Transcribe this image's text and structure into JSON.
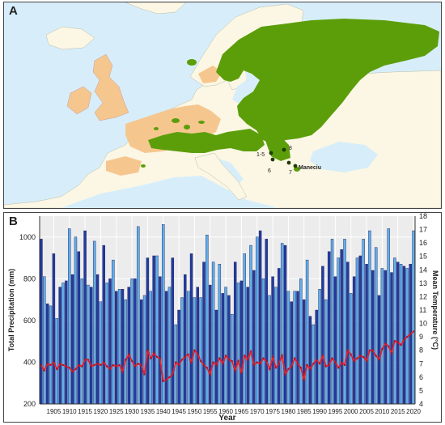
{
  "panel_a": {
    "letter": "A",
    "site_labels": [
      "1-5",
      "6",
      "7",
      "8",
      "Maneciu"
    ],
    "colors": {
      "sea": "#d7eefa",
      "land": "#fbf7e4",
      "range": "#5c9e0a",
      "highlight": "#f5c78f",
      "site": "#1e3d08"
    }
  },
  "panel_b": {
    "letter": "B"
  },
  "chart_data": {
    "type": "bar",
    "title": "",
    "xlabel": "Year",
    "ylabel": "Total Precipitation (mm)",
    "y2label": "Mean Temperature (°C)",
    "ylim": [
      200,
      1100
    ],
    "y2lim": [
      4,
      18
    ],
    "yticks": [
      200,
      400,
      600,
      800,
      1000
    ],
    "y2ticks": [
      4,
      5,
      6,
      7,
      8,
      9,
      10,
      11,
      12,
      13,
      14,
      15,
      16,
      17,
      18
    ],
    "xticks": [
      1905,
      1910,
      1915,
      1920,
      1925,
      1930,
      1935,
      1940,
      1945,
      1950,
      1955,
      1960,
      1965,
      1970,
      1975,
      1980,
      1985,
      1990,
      1995,
      2000,
      2005,
      2010,
      2015,
      2020
    ],
    "grid": true,
    "years": [
      1901,
      1902,
      1903,
      1904,
      1905,
      1906,
      1907,
      1908,
      1909,
      1910,
      1911,
      1912,
      1913,
      1914,
      1915,
      1916,
      1917,
      1918,
      1919,
      1920,
      1921,
      1922,
      1923,
      1924,
      1925,
      1926,
      1927,
      1928,
      1929,
      1930,
      1931,
      1932,
      1933,
      1934,
      1935,
      1936,
      1937,
      1938,
      1939,
      1940,
      1941,
      1942,
      1943,
      1944,
      1945,
      1946,
      1947,
      1948,
      1949,
      1950,
      1951,
      1952,
      1953,
      1954,
      1955,
      1956,
      1957,
      1958,
      1959,
      1960,
      1961,
      1962,
      1963,
      1964,
      1965,
      1966,
      1967,
      1968,
      1969,
      1970,
      1971,
      1972,
      1973,
      1974,
      1975,
      1976,
      1977,
      1978,
      1979,
      1980,
      1981,
      1982,
      1983,
      1984,
      1985,
      1986,
      1987,
      1988,
      1989,
      1990,
      1991,
      1992,
      1993,
      1994,
      1995,
      1996,
      1997,
      1998,
      1999,
      2000,
      2001,
      2002,
      2003,
      2004,
      2005,
      2006,
      2007,
      2008,
      2009,
      2010,
      2011,
      2012,
      2013,
      2014,
      2015,
      2016,
      2017,
      2018,
      2019,
      2020
    ],
    "precipitation": [
      990,
      810,
      680,
      670,
      920,
      610,
      760,
      780,
      790,
      1040,
      820,
      1000,
      930,
      800,
      1030,
      770,
      760,
      980,
      820,
      690,
      960,
      780,
      800,
      890,
      740,
      750,
      750,
      700,
      760,
      800,
      800,
      1050,
      700,
      720,
      900,
      740,
      910,
      910,
      810,
      1060,
      740,
      760,
      900,
      580,
      650,
      710,
      820,
      740,
      920,
      710,
      760,
      710,
      880,
      1010,
      770,
      880,
      650,
      870,
      730,
      760,
      720,
      630,
      880,
      780,
      790,
      920,
      760,
      960,
      840,
      1000,
      1030,
      800,
      990,
      720,
      810,
      760,
      850,
      970,
      960,
      740,
      690,
      740,
      740,
      800,
      700,
      890,
      620,
      580,
      650,
      750,
      860,
      700,
      930,
      990,
      810,
      900,
      940,
      990,
      880,
      730,
      810,
      900,
      910,
      990,
      870,
      1030,
      840,
      950,
      720,
      850,
      840,
      1040,
      830,
      900,
      880,
      870,
      860,
      850,
      870,
      1030
    ],
    "temperature": [
      6.9,
      6.5,
      7.0,
      6.9,
      7.1,
      6.6,
      7.0,
      6.9,
      6.8,
      6.7,
      6.4,
      6.6,
      6.9,
      6.8,
      7.3,
      7.3,
      6.8,
      6.9,
      7.0,
      6.9,
      7.1,
      6.8,
      6.6,
      6.9,
      6.8,
      6.9,
      6.4,
      7.3,
      7.7,
      7.2,
      6.8,
      7.0,
      6.9,
      6.2,
      8.0,
      7.4,
      7.8,
      7.5,
      7.4,
      5.7,
      5.8,
      6.0,
      6.2,
      7.1,
      6.9,
      7.3,
      7.5,
      7.7,
      7.1,
      8.0,
      7.7,
      7.2,
      6.9,
      6.7,
      6.2,
      7.1,
      6.9,
      7.4,
      7.0,
      7.6,
      7.3,
      7.2,
      6.5,
      7.2,
      6.3,
      7.6,
      7.3,
      7.9,
      6.9,
      7.1,
      7.0,
      7.4,
      7.2,
      6.6,
      7.5,
      6.7,
      7.0,
      7.6,
      6.2,
      6.6,
      6.8,
      7.4,
      7.0,
      6.7,
      5.8,
      6.9,
      6.6,
      7.0,
      7.3,
      7.0,
      7.6,
      6.8,
      6.9,
      7.4,
      7.1,
      6.7,
      7.1,
      6.9,
      8.0,
      7.7,
      7.2,
      7.4,
      7.6,
      7.5,
      7.2,
      8.0,
      8.0,
      7.6,
      7.3,
      8.1,
      8.5,
      8.3,
      7.8,
      8.7,
      8.6,
      8.4,
      8.8,
      9.0,
      9.2,
      9.4
    ],
    "colors": {
      "bar_dark": "#243b9e",
      "bar_light": "#62aee9",
      "bar_edge": "#0d1a5c",
      "temp_line": "#e8202c",
      "temp_point": "#b01020",
      "plot_bg": "#ececec",
      "grid": "#ffffff"
    }
  }
}
